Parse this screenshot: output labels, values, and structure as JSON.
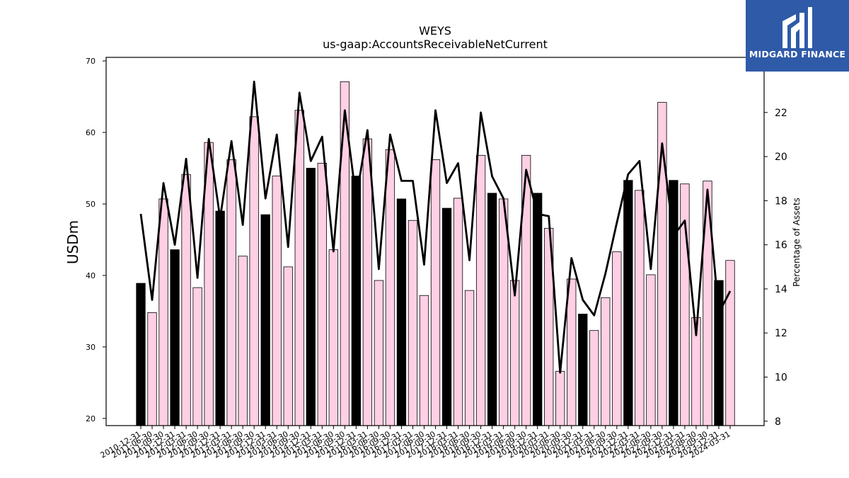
{
  "chart_data": {
    "type": "bar+line",
    "title": "WEYS",
    "subtitle": "us-gaap:AccountsReceivableNetCurrent",
    "ylabel": "USDm",
    "y2label": "Percentage of Assets",
    "ylim": [
      19,
      70.5
    ],
    "y2lim": [
      7.8,
      24.5
    ],
    "yticks": [
      20,
      30,
      40,
      50,
      60,
      70
    ],
    "y2ticks": [
      8,
      10,
      12,
      14,
      16,
      18,
      20,
      22
    ],
    "x_tick_labels": [
      "2010-12-31",
      "2011-06-30",
      "2011-09-30",
      "2011-12-31",
      "2012-03-31",
      "2012-06-30",
      "2012-09-30",
      "2012-12-31",
      "2013-03-31",
      "2013-06-30",
      "2013-09-30",
      "2013-12-31",
      "2014-03-31",
      "2014-06-30",
      "2014-09-30",
      "2014-12-31",
      "2015-03-31",
      "2015-06-30",
      "2015-09-30",
      "2015-12-31",
      "2016-03-31",
      "2016-06-30",
      "2016-09-30",
      "2016-12-31",
      "2017-03-31",
      "2017-06-30",
      "2017-09-30",
      "2017-12-31",
      "2018-03-31",
      "2018-06-30",
      "2018-09-30",
      "2018-12-31",
      "2019-03-31",
      "2019-06-30",
      "2019-09-30",
      "2019-12-31",
      "2020-03-31",
      "2020-06-30",
      "2020-09-30",
      "2020-12-31",
      "2021-03-31",
      "2021-06-30",
      "2021-09-30",
      "2021-12-31",
      "2022-03-31",
      "2022-06-30",
      "2022-09-30",
      "2022-12-31",
      "2023-03-31",
      "2023-06-30",
      "2023-09-30",
      "2023-12-31",
      "2024-03-31"
    ],
    "bar_values": [
      38.9,
      34.8,
      50.7,
      43.6,
      54.1,
      38.3,
      58.6,
      49.0,
      56.2,
      42.7,
      62.2,
      48.5,
      53.9,
      41.2,
      63.1,
      55.0,
      55.7,
      43.6,
      67.1,
      53.9,
      59.1,
      39.3,
      57.6,
      50.7,
      47.7,
      37.2,
      56.2,
      49.4,
      50.8,
      37.9,
      56.8,
      51.5,
      50.7,
      39.3,
      56.8,
      51.5,
      46.6,
      26.6,
      39.5,
      34.6,
      32.3,
      36.9,
      43.3,
      53.3,
      51.9,
      40.1,
      64.2,
      53.3,
      52.8,
      34.1,
      53.2,
      39.3,
      42.1
    ],
    "bar_colors": [
      "#000000",
      "#ffcfe4",
      "#ffcfe4",
      "#000000",
      "#ffcfe4",
      "#ffcfe4",
      "#ffcfe4",
      "#000000",
      "#ffcfe4",
      "#ffcfe4",
      "#ffcfe4",
      "#000000",
      "#ffcfe4",
      "#ffcfe4",
      "#ffcfe4",
      "#000000",
      "#ffcfe4",
      "#ffcfe4",
      "#ffcfe4",
      "#000000",
      "#ffcfe4",
      "#ffcfe4",
      "#ffcfe4",
      "#000000",
      "#ffcfe4",
      "#ffcfe4",
      "#ffcfe4",
      "#000000",
      "#ffcfe4",
      "#ffcfe4",
      "#ffcfe4",
      "#000000",
      "#ffcfe4",
      "#ffcfe4",
      "#ffcfe4",
      "#000000",
      "#ffcfe4",
      "#ffcfe4",
      "#ffcfe4",
      "#000000",
      "#ffcfe4",
      "#ffcfe4",
      "#ffcfe4",
      "#000000",
      "#ffcfe4",
      "#ffcfe4",
      "#ffcfe4",
      "#000000",
      "#ffcfe4",
      "#ffcfe4",
      "#ffcfe4",
      "#000000",
      "#ffcfe4"
    ],
    "line_values": [
      17.4,
      13.5,
      18.8,
      16.0,
      19.9,
      14.5,
      20.8,
      17.2,
      20.7,
      16.9,
      23.4,
      18.1,
      21.0,
      15.9,
      22.9,
      19.8,
      20.9,
      15.7,
      22.1,
      18.1,
      21.2,
      14.9,
      21.0,
      18.9,
      18.9,
      15.1,
      22.1,
      18.8,
      19.7,
      15.3,
      22.0,
      19.1,
      18.1,
      13.7,
      19.4,
      17.4,
      17.3,
      10.2,
      15.4,
      13.5,
      12.8,
      14.7,
      17.0,
      19.2,
      19.8,
      14.9,
      20.6,
      16.4,
      17.1,
      11.9,
      18.5,
      12.9,
      13.9
    ],
    "legend": "none",
    "grid": false
  },
  "logo": {
    "text": "MIDGARD FINANCE",
    "color": "#2f5aa8"
  }
}
